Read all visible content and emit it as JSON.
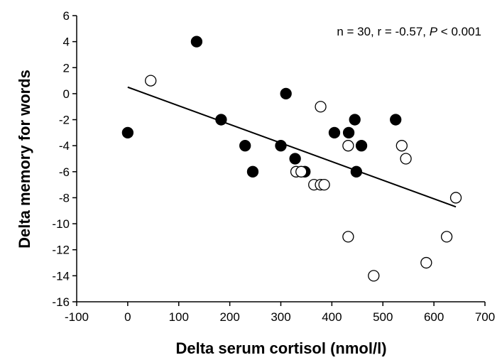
{
  "chart_data": {
    "type": "scatter",
    "x_label": "Delta serum cortisol (nmol/l)",
    "y_label": "Delta memory for words",
    "annotation": [
      "n = 30, r = -0.57, ",
      "P",
      " < 0.001"
    ],
    "series": [
      {
        "marker": "filled",
        "color": "#000000",
        "x": [
          0,
          135,
          183,
          230,
          245,
          300,
          310,
          328,
          347,
          405,
          433,
          445,
          448,
          458,
          525
        ],
        "values": [
          -3,
          4,
          -2,
          -4,
          -6,
          -4,
          0,
          -5,
          -6,
          -3,
          -3,
          -2,
          -6,
          -4,
          -2
        ]
      },
      {
        "marker": "open",
        "color": "#000000",
        "x": [
          45,
          330,
          340,
          365,
          378,
          378,
          385,
          432,
          432,
          482,
          537,
          545,
          585,
          625,
          643
        ],
        "values": [
          1,
          -6,
          -6,
          -7,
          -1,
          -7,
          -7,
          -4,
          -11,
          -14,
          -4,
          -5,
          -13,
          -11,
          -8
        ]
      }
    ],
    "trendline": {
      "x": [
        0,
        643
      ],
      "values": [
        0.5,
        -8.7
      ]
    },
    "xlim": [
      -100,
      700
    ],
    "xticks": [
      -100,
      0,
      100,
      200,
      300,
      400,
      500,
      600,
      700
    ],
    "ylim": [
      -16,
      6
    ],
    "yticks": [
      -16,
      -14,
      -12,
      -10,
      -8,
      -6,
      -4,
      -2,
      0,
      2,
      4,
      6
    ]
  }
}
